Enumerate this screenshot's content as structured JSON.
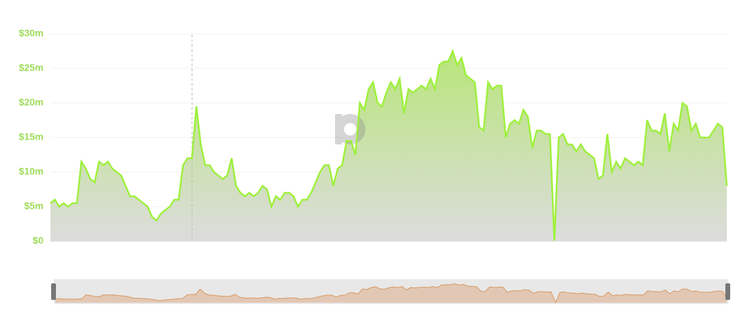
{
  "chart_data": {
    "type": "area",
    "color": "#9ef03c",
    "values": [
      5.5,
      6,
      5,
      5.5,
      5,
      5.5,
      5.5,
      11.5,
      10.5,
      9,
      8.5,
      11.5,
      11,
      11.5,
      10.5,
      10,
      9.5,
      8,
      6.5,
      6.5,
      6,
      5.5,
      5,
      3.5,
      3,
      4,
      4.5,
      5,
      6,
      6,
      11,
      12,
      12,
      19.5,
      14,
      11,
      11,
      10,
      9.5,
      9,
      9.5,
      12,
      8,
      7,
      6.5,
      7,
      6.5,
      7,
      8,
      7.5,
      5,
      6.5,
      6,
      7,
      7,
      6.5,
      5,
      6,
      6,
      7,
      8.5,
      10,
      11,
      11,
      8,
      10.5,
      11,
      14.5,
      14.5,
      12.5,
      20,
      19,
      22,
      23,
      20,
      19.5,
      21.5,
      23,
      22,
      23.5,
      18.5,
      22,
      21.5,
      22,
      22.5,
      22,
      23.5,
      22,
      25.5,
      26,
      26,
      27.5,
      25.5,
      26.5,
      24,
      23.5,
      23,
      16.5,
      16,
      23,
      22,
      22.5,
      22.5,
      15,
      17,
      17.5,
      17,
      19,
      18,
      13.5,
      16,
      16,
      15.5,
      15.5,
      0,
      15,
      15.5,
      14,
      14,
      13,
      14,
      13,
      12.5,
      12,
      9,
      9.5,
      15.5,
      10,
      11.5,
      10.5,
      12,
      11.5,
      11,
      11.5,
      11,
      17.5,
      16,
      16,
      15.5,
      18.5,
      13,
      17,
      16,
      20,
      19.5,
      16,
      17,
      15,
      15,
      15,
      16,
      17,
      16.5,
      8
    ],
    "ylim": [
      0,
      30
    ],
    "yticks": [
      {
        "value": 0,
        "label": "$0"
      },
      {
        "value": 5,
        "label": "$5m"
      },
      {
        "value": 10,
        "label": "$10m"
      },
      {
        "value": 15,
        "label": "$15m"
      },
      {
        "value": 20,
        "label": "$20m"
      },
      {
        "value": 25,
        "label": "$25m"
      },
      {
        "value": 30,
        "label": "$30m"
      }
    ],
    "grid": true
  }
}
